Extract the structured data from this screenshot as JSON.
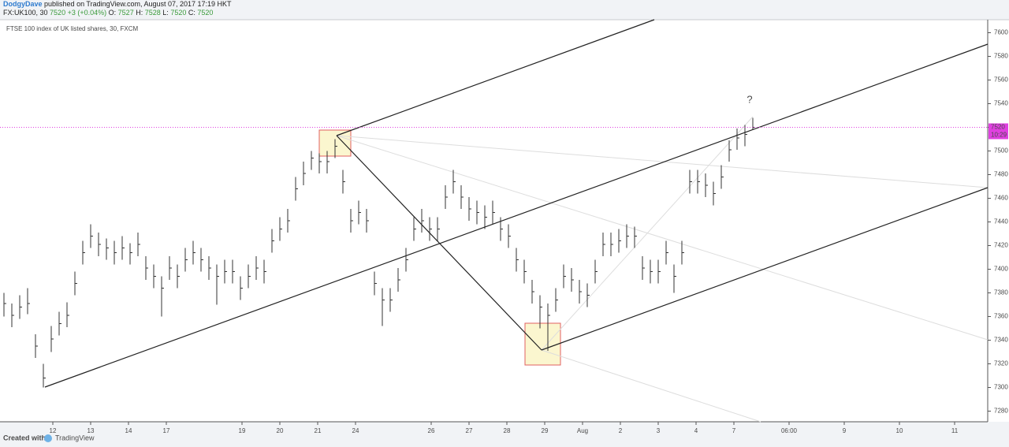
{
  "header": {
    "author": "DodgyDave",
    "published": "published on TradingView.com, August 07, 2017 17:19 HKT",
    "symbol": "FX:UK100, 30",
    "price": 7520,
    "change": "+3 (+0.04%)",
    "o_label": "O:",
    "open": 7527,
    "h_label": "H:",
    "high": 7528,
    "l_label": "L:",
    "low": 7520,
    "c_label": "C:",
    "close": 7520
  },
  "chart_data": {
    "type": "hlc",
    "title": "FTSE 100 index of UK listed shares, 30, FXCM",
    "categories": [
      "12",
      "13",
      "14",
      "17",
      null,
      "19",
      "20",
      "21",
      "24",
      null,
      "26",
      "27",
      "28",
      "29",
      "Aug",
      "2",
      "3",
      "4",
      "7",
      "06:00",
      "9",
      "10",
      "11"
    ],
    "color": "#333333",
    "high": [
      7380,
      7371,
      7378,
      7384,
      7345,
      7320,
      7352,
      7364,
      7372,
      7398,
      7424,
      7438,
      7431,
      7426,
      7424,
      7428,
      7422,
      7431,
      7411,
      7404,
      7394,
      7411,
      7404,
      7418,
      7424,
      7418,
      7411,
      7404,
      7408,
      7408,
      7394,
      7404,
      7411,
      7408,
      7434,
      7444,
      7451,
      7478,
      7491,
      7500,
      7498,
      7500,
      7510,
      7484,
      7451,
      7458,
      7451,
      7398,
      7384,
      7384,
      7401,
      7418,
      7444,
      7451,
      7444,
      7444,
      7471,
      7484,
      7471,
      7461,
      7458,
      7454,
      7458,
      7444,
      7438,
      7418,
      7408,
      7391,
      7378,
      7371,
      7384,
      7404,
      7401,
      7391,
      7388,
      7408,
      7431,
      7431,
      7434,
      7438,
      7436,
      7411,
      7408,
      7408,
      7424,
      7404,
      7424,
      7484,
      7484,
      7481,
      7474,
      7488,
      7509,
      7519,
      7522,
      7528
    ],
    "low": [
      7360,
      7351,
      7358,
      7362,
      7325,
      7300,
      7330,
      7344,
      7351,
      7378,
      7404,
      7418,
      7411,
      7408,
      7404,
      7408,
      7404,
      7411,
      7391,
      7384,
      7360,
      7391,
      7384,
      7398,
      7404,
      7398,
      7391,
      7370,
      7388,
      7388,
      7374,
      7384,
      7391,
      7388,
      7414,
      7424,
      7431,
      7458,
      7471,
      7484,
      7481,
      7481,
      7494,
      7464,
      7431,
      7438,
      7431,
      7378,
      7352,
      7364,
      7381,
      7398,
      7424,
      7431,
      7424,
      7424,
      7451,
      7464,
      7451,
      7441,
      7438,
      7434,
      7438,
      7424,
      7418,
      7398,
      7388,
      7371,
      7350,
      7331,
      7364,
      7384,
      7381,
      7371,
      7368,
      7388,
      7411,
      7411,
      7414,
      7418,
      7418,
      7391,
      7388,
      7388,
      7404,
      7380,
      7404,
      7464,
      7464,
      7461,
      7454,
      7468,
      7491,
      7501,
      7504,
      7518
    ],
    "close": [
      7371,
      7361,
      7368,
      7371,
      7335,
      7308,
      7341,
      7354,
      7361,
      7388,
      7414,
      7428,
      7421,
      7418,
      7414,
      7418,
      7414,
      7421,
      7401,
      7394,
      7384,
      7401,
      7394,
      7408,
      7414,
      7408,
      7401,
      7394,
      7398,
      7398,
      7384,
      7394,
      7401,
      7398,
      7424,
      7434,
      7441,
      7468,
      7481,
      7494,
      7491,
      7491,
      7504,
      7474,
      7441,
      7448,
      7441,
      7388,
      7374,
      7374,
      7391,
      7408,
      7434,
      7441,
      7434,
      7434,
      7461,
      7474,
      7461,
      7451,
      7448,
      7444,
      7448,
      7434,
      7428,
      7408,
      7398,
      7381,
      7368,
      7361,
      7374,
      7394,
      7391,
      7381,
      7378,
      7398,
      7421,
      7421,
      7424,
      7428,
      7428,
      7401,
      7398,
      7398,
      7414,
      7394,
      7414,
      7474,
      7474,
      7471,
      7464,
      7478,
      7501,
      7511,
      7514,
      7520
    ],
    "current_price": 7520,
    "countdown": "10:29",
    "price_line_color": "#e040e0",
    "annotation": "?",
    "ylim": [
      7271,
      7611
    ],
    "yticks": [
      7280,
      7300,
      7320,
      7340,
      7360,
      7380,
      7400,
      7420,
      7440,
      7460,
      7480,
      7500,
      7520,
      7540,
      7560,
      7580,
      7600
    ]
  },
  "footer": {
    "created": "Created with",
    "brand": "TradingView"
  }
}
